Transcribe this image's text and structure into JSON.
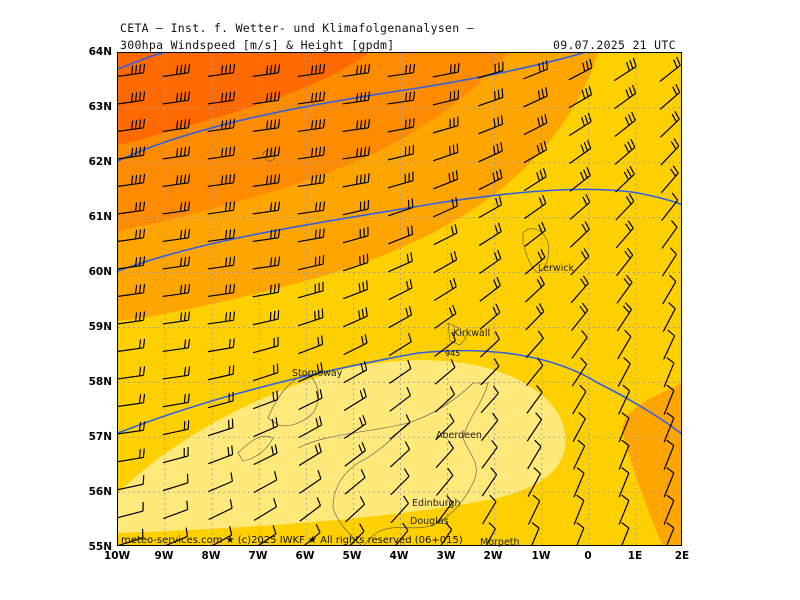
{
  "header": {
    "institute": "CETA — Inst. f. Wetter- und Klimafolgenanalysen —",
    "product": "300hpa Windspeed [m/s] & Height [gpdm]",
    "valid_time": "09.07.2025 21 UTC"
  },
  "map": {
    "lat_labels": [
      "64N",
      "63N",
      "62N",
      "61N",
      "60N",
      "59N",
      "58N",
      "57N",
      "56N",
      "55N"
    ],
    "lon_labels": [
      "10W",
      "9W",
      "8W",
      "7W",
      "6W",
      "5W",
      "4W",
      "3W",
      "2W",
      "1W",
      "0",
      "1E",
      "2E"
    ],
    "cities": [
      {
        "name": "Lerwick"
      },
      {
        "name": "Kirkwall"
      },
      {
        "name": "Stornoway"
      },
      {
        "name": "Aberdeen"
      },
      {
        "name": "Edinburgh"
      },
      {
        "name": "Douglas"
      },
      {
        "name": "Morpeth"
      }
    ],
    "contour_label": "945",
    "colors": {
      "speed_very_high": "#ff6a00",
      "speed_high": "#ff8c00",
      "speed_mid": "#ffa500",
      "speed_lowmid": "#ffd000",
      "speed_low": "#ffe97a",
      "height_contour": "#3060e0",
      "grid": "#9a9aaa"
    }
  },
  "footer": {
    "credit": "meteo-services.com ★ (c)2025 IWKF ★ All rights reserved (06+015)"
  }
}
